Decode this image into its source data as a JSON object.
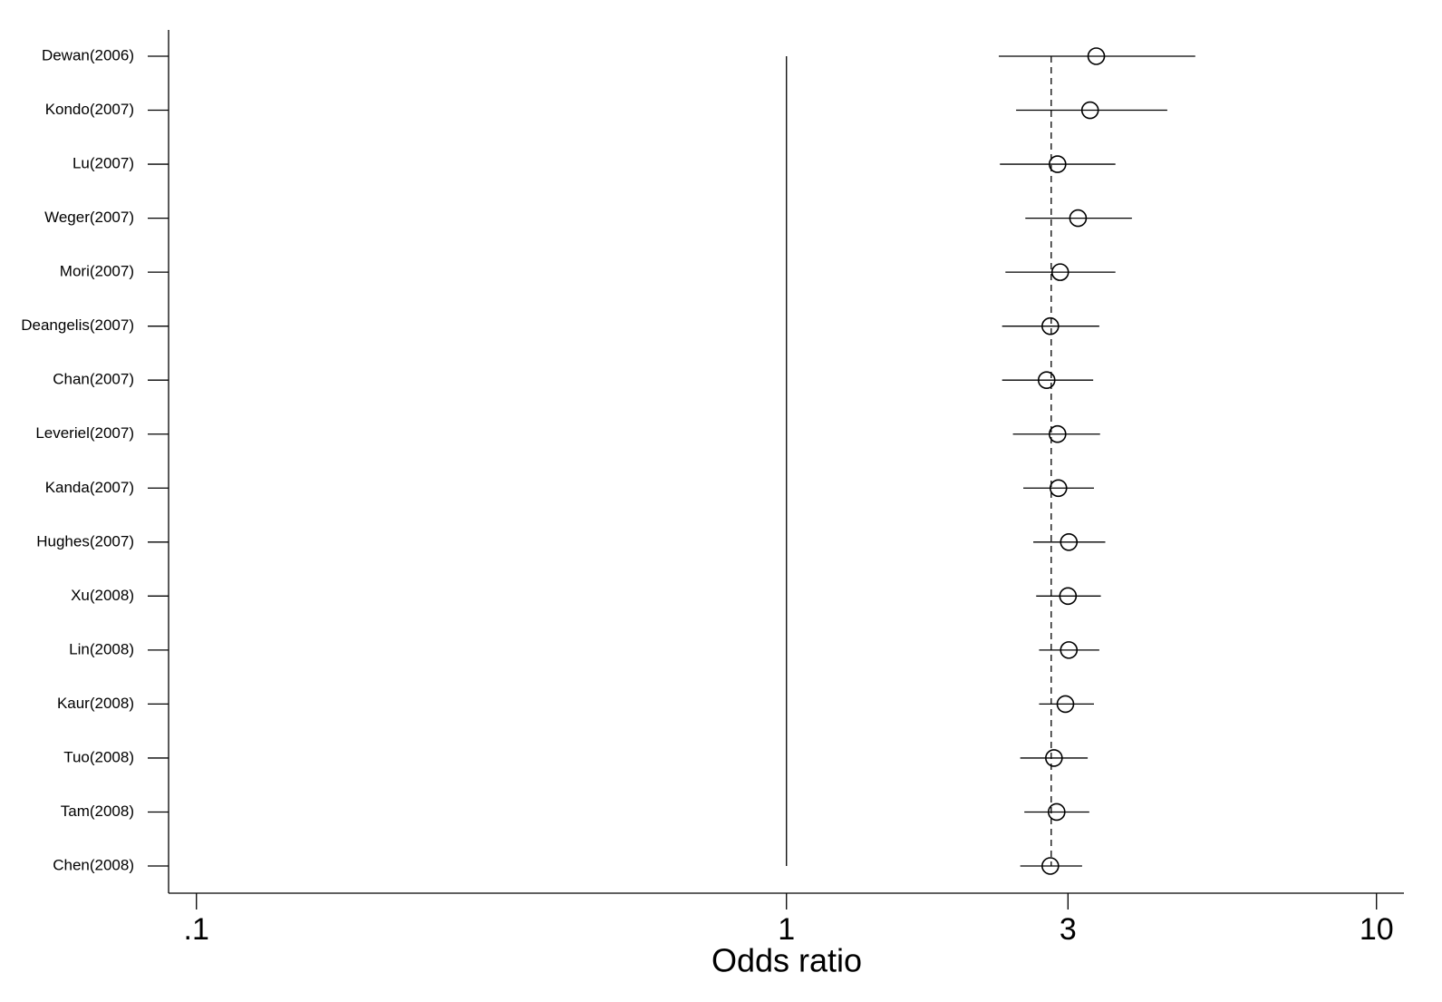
{
  "chart_data": {
    "type": "forest",
    "categories": [
      "Dewan(2006)",
      "Kondo(2007)",
      "Lu(2007)",
      "Weger(2007)",
      "Mori(2007)",
      "Deangelis(2007)",
      "Chan(2007)",
      "Leveriel(2007)",
      "Kanda(2007)",
      "Hughes(2007)",
      "Xu(2008)",
      "Lin(2008)",
      "Kaur(2008)",
      "Tuo(2008)",
      "Tam(2008)",
      "Chen(2008)"
    ],
    "values": [
      3.35,
      3.27,
      2.88,
      3.12,
      2.91,
      2.8,
      2.76,
      2.88,
      2.89,
      3.01,
      3.0,
      3.01,
      2.97,
      2.84,
      2.87,
      2.8
    ],
    "ci_low": [
      2.29,
      2.45,
      2.3,
      2.54,
      2.35,
      2.32,
      2.32,
      2.42,
      2.52,
      2.62,
      2.65,
      2.68,
      2.68,
      2.49,
      2.53,
      2.49
    ],
    "ci_high": [
      4.93,
      4.42,
      3.61,
      3.85,
      3.61,
      3.39,
      3.31,
      3.4,
      3.32,
      3.47,
      3.41,
      3.39,
      3.32,
      3.24,
      3.26,
      3.17
    ],
    "reference_line": 1,
    "pooled_line": 2.81,
    "xlabel": "Odds ratio",
    "xscale": "log",
    "xlim": [
      0.0897,
      11.13
    ],
    "xticks": [
      {
        "value": 0.1,
        "label": ".1"
      },
      1,
      3,
      10
    ],
    "color": "#000000"
  }
}
